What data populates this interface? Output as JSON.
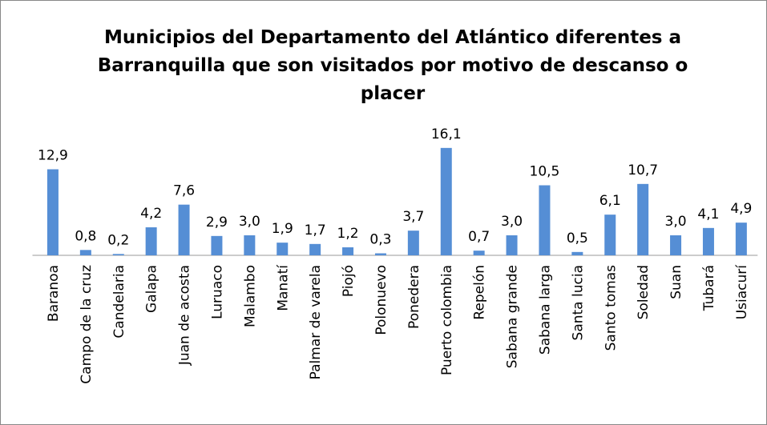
{
  "chart_data": {
    "type": "bar",
    "title": "Municipios del Departamento del Atlántico diferentes a Barranquilla que son visitados por motivo de descanso o placer",
    "categories": [
      "Baranoa",
      "Campo de la cruz",
      "Candelaria",
      "Galapa",
      "Juan de acosta",
      "Luruaco",
      "Malambo",
      "Manatí",
      "Palmar de varela",
      "Piojó",
      "Polonuevo",
      "Ponedera",
      "Puerto colombia",
      "Repelón",
      "Sabana grande",
      "Sabana larga",
      "Santa lucia",
      "Santo tomas",
      "Soledad",
      "Suan",
      "Tubará",
      "Usiacurí"
    ],
    "values": [
      12.9,
      0.8,
      0.2,
      4.2,
      7.6,
      2.9,
      3.0,
      1.9,
      1.7,
      1.2,
      0.3,
      3.7,
      16.1,
      0.7,
      3.0,
      10.5,
      0.5,
      6.1,
      10.7,
      3.0,
      4.1,
      4.9
    ],
    "value_labels": [
      "12,9",
      "0,8",
      "0,2",
      "4,2",
      "7,6",
      "2,9",
      "3,0",
      "1,9",
      "1,7",
      "1,2",
      "0,3",
      "3,7",
      "16,1",
      "0,7",
      "3,0",
      "10,5",
      "0,5",
      "6,1",
      "10,7",
      "3,0",
      "4,1",
      "4,9"
    ],
    "color": "#558ed5",
    "ylim": [
      0,
      18
    ]
  }
}
